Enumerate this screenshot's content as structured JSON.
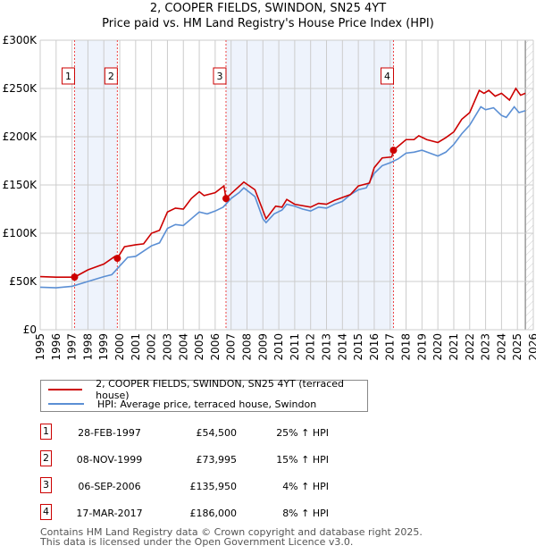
{
  "header": {
    "title": "2, COOPER FIELDS, SWINDON, SN25 4YT",
    "subtitle": "Price paid vs. HM Land Registry's House Price Index (HPI)"
  },
  "chart_data": {
    "type": "line",
    "title": "2, COOPER FIELDS, SWINDON, SN25 4YT",
    "subtitle": "Price paid vs. HM Land Registry's House Price Index (HPI)",
    "xlim": [
      1995,
      2026
    ],
    "ylim": [
      0,
      300000
    ],
    "x_ticks": [
      "1995",
      "1996",
      "1997",
      "1998",
      "1999",
      "2000",
      "2001",
      "2002",
      "2003",
      "2004",
      "2005",
      "2006",
      "2007",
      "2008",
      "2009",
      "2010",
      "2011",
      "2012",
      "2013",
      "2014",
      "2015",
      "2016",
      "2017",
      "2018",
      "2019",
      "2020",
      "2021",
      "2022",
      "2023",
      "2024",
      "2025",
      "2026"
    ],
    "y_ticks": [
      {
        "v": 0,
        "label": "£0"
      },
      {
        "v": 50000,
        "label": "£50K"
      },
      {
        "v": 100000,
        "label": "£100K"
      },
      {
        "v": 150000,
        "label": "£150K"
      },
      {
        "v": 200000,
        "label": "£200K"
      },
      {
        "v": 250000,
        "label": "£250K"
      },
      {
        "v": 300000,
        "label": "£300K"
      }
    ],
    "grid": true,
    "colors": {
      "property": "#cc0000",
      "hpi": "#5b8fd4",
      "band": "#eef3fc",
      "marker_line": "#ee4444"
    },
    "shaded_ranges": [
      [
        1997.16,
        1999.85
      ],
      [
        2006.68,
        2017.21
      ]
    ],
    "forecast_from": 2025.5,
    "series": [
      {
        "name": "2, COOPER FIELDS, SWINDON, SN25 4YT (terraced house)",
        "color": "#cc0000",
        "x": [
          1995,
          1996,
          1997.16,
          1998,
          1999,
          1999.7,
          1999.85,
          2000.3,
          2001,
          2001.5,
          2002,
          2002.5,
          2003,
          2003.5,
          2004,
          2004.5,
          2005,
          2005.3,
          2006,
          2006.55,
          2006.68,
          2007,
          2007.8,
          2008.5,
          2009.2,
          2009.8,
          2010.2,
          2010.5,
          2011,
          2012,
          2012.5,
          2013,
          2013.5,
          2014,
          2014.5,
          2015,
          2015.7,
          2016,
          2016.5,
          2017.1,
          2017.21,
          2018,
          2018.5,
          2018.8,
          2019.3,
          2020,
          2020.5,
          2021,
          2021.5,
          2022,
          2022.6,
          2022.9,
          2023.2,
          2023.6,
          2024,
          2024.5,
          2024.9,
          2025.2,
          2025.5
        ],
        "y": [
          55000,
          54500,
          54500,
          62000,
          68000,
          76000,
          74000,
          86000,
          88000,
          89000,
          100000,
          103000,
          122000,
          126000,
          125000,
          136000,
          143000,
          139000,
          142000,
          149000,
          136000,
          141000,
          153000,
          145000,
          115000,
          128000,
          127000,
          135000,
          130000,
          127000,
          131000,
          130000,
          134000,
          137000,
          140000,
          149000,
          152000,
          168000,
          178000,
          179000,
          186000,
          197000,
          197000,
          201000,
          197000,
          194000,
          199000,
          205000,
          218000,
          225000,
          248000,
          245000,
          248000,
          242000,
          245000,
          238000,
          250000,
          243000,
          245000
        ]
      },
      {
        "name": "HPI: Average price, terraced house, Swindon",
        "color": "#5b8fd4",
        "x": [
          1995,
          1996,
          1997,
          1998,
          1999,
          1999.5,
          2000,
          2000.5,
          2001,
          2002,
          2002.5,
          2003,
          2003.5,
          2004,
          2004.5,
          2005,
          2005.5,
          2006,
          2006.5,
          2007,
          2007.5,
          2007.8,
          2008.5,
          2009,
          2009.2,
          2009.7,
          2010.2,
          2010.5,
          2011,
          2011.5,
          2012,
          2012.5,
          2013,
          2013.5,
          2014,
          2014.5,
          2015,
          2015.5,
          2016,
          2016.5,
          2017,
          2017.5,
          2018,
          2018.5,
          2019,
          2019.5,
          2020,
          2020.5,
          2021,
          2021.5,
          2022,
          2022.7,
          2023,
          2023.5,
          2024,
          2024.3,
          2024.8,
          2025.1,
          2025.5
        ],
        "y": [
          44000,
          43500,
          45000,
          50000,
          55000,
          57000,
          66000,
          75000,
          76000,
          87000,
          90000,
          105000,
          109000,
          108000,
          115000,
          122000,
          120000,
          123000,
          127000,
          136000,
          142000,
          147000,
          138000,
          115000,
          111000,
          120000,
          124000,
          130000,
          128000,
          125000,
          123000,
          127000,
          126000,
          130000,
          133000,
          140000,
          145000,
          147000,
          162000,
          170000,
          173000,
          177000,
          183000,
          184000,
          186000,
          183000,
          180000,
          184000,
          192000,
          203000,
          212000,
          231000,
          228000,
          230000,
          222000,
          220000,
          231000,
          225000,
          227000
        ]
      }
    ],
    "sales": [
      {
        "id": "1",
        "x": 1997.16,
        "y": 54500
      },
      {
        "id": "2",
        "x": 1999.85,
        "y": 73995
      },
      {
        "id": "3",
        "x": 2006.68,
        "y": 135950
      },
      {
        "id": "4",
        "x": 2017.21,
        "y": 186000
      }
    ]
  },
  "legend": {
    "property": "2, COOPER FIELDS, SWINDON, SN25 4YT (terraced house)",
    "hpi": "HPI: Average price, terraced house, Swindon"
  },
  "transactions": [
    {
      "num": "1",
      "date": "28-FEB-1997",
      "price": "£54,500",
      "hpi": "25% ↑ HPI"
    },
    {
      "num": "2",
      "date": "08-NOV-1999",
      "price": "£73,995",
      "hpi": "15% ↑ HPI"
    },
    {
      "num": "3",
      "date": "06-SEP-2006",
      "price": "£135,950",
      "hpi": "4% ↑ HPI"
    },
    {
      "num": "4",
      "date": "17-MAR-2017",
      "price": "£186,000",
      "hpi": "8% ↑ HPI"
    }
  ],
  "footer": {
    "line1": "Contains HM Land Registry data © Crown copyright and database right 2025.",
    "line2": "This data is licensed under the Open Government Licence v3.0."
  }
}
